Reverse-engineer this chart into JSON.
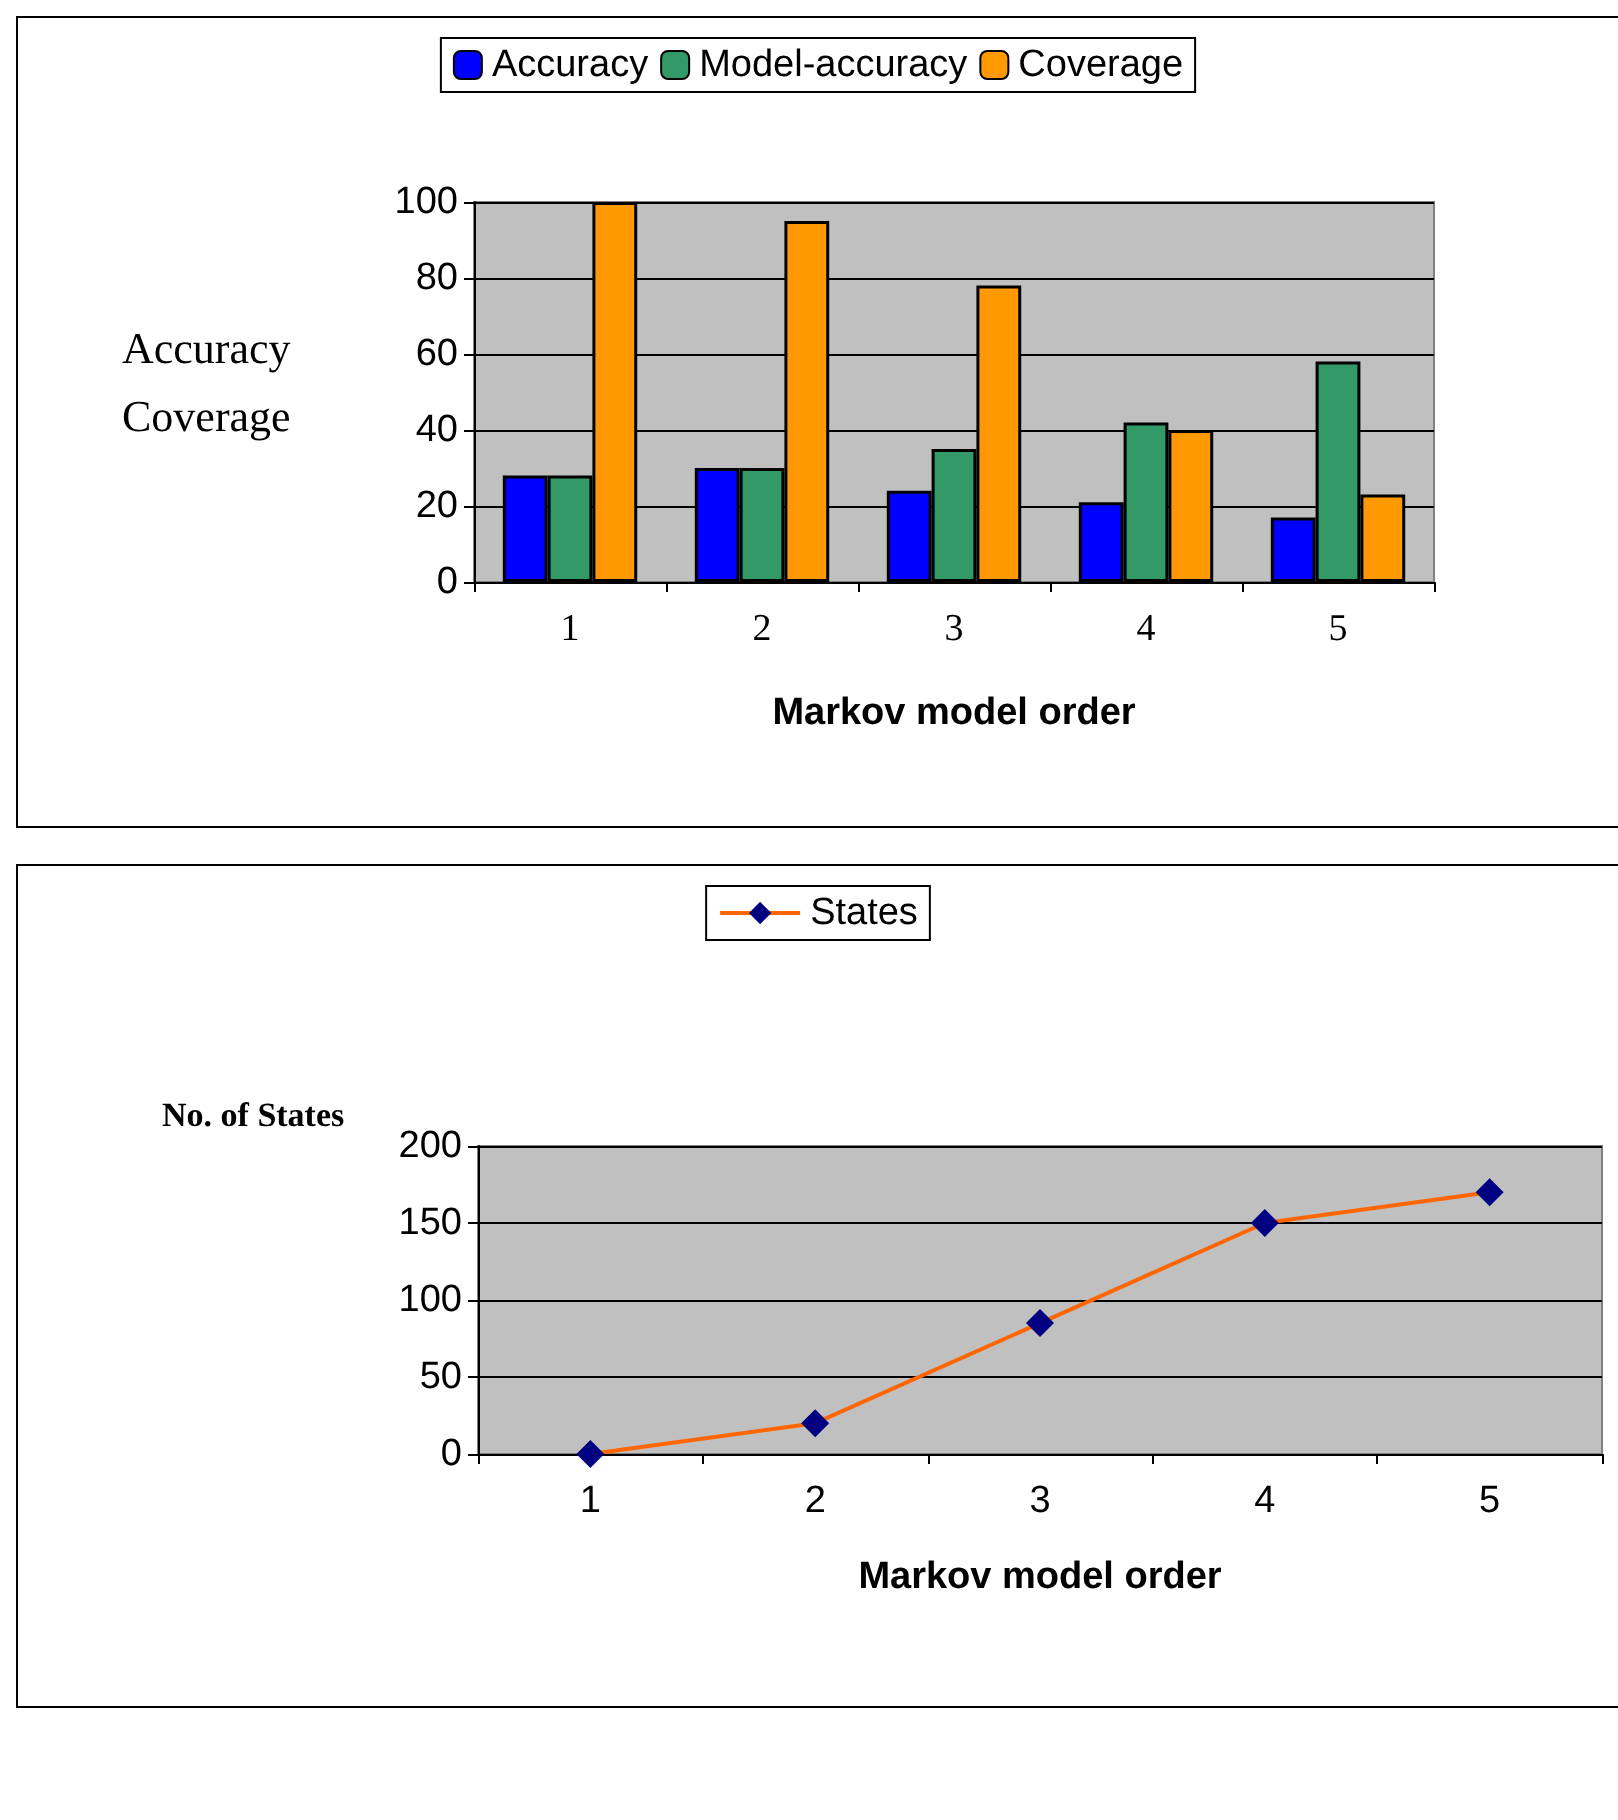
{
  "chart_data": [
    {
      "type": "bar",
      "categories": [
        "1",
        "2",
        "3",
        "4",
        "5"
      ],
      "xlabel": "Markov model order",
      "ylabel": "Accuracy\nCoverage",
      "ylim": [
        0,
        100
      ],
      "yticks": [
        0,
        20,
        40,
        60,
        80,
        100
      ],
      "grid": "y",
      "legend": "top",
      "series": [
        {
          "name": "Accuracy",
          "color": "#0000ff",
          "values": [
            28,
            30,
            24,
            21,
            17
          ]
        },
        {
          "name": "Model-accuracy",
          "color": "#339966",
          "values": [
            28,
            30,
            35,
            42,
            58
          ]
        },
        {
          "name": "Coverage",
          "color": "#ff9900",
          "values": [
            100,
            95,
            78,
            40,
            23
          ]
        }
      ]
    },
    {
      "type": "line",
      "categories": [
        "1",
        "2",
        "3",
        "4",
        "5"
      ],
      "xlabel": "Markov model order",
      "ylabel": "No. of States",
      "ylim": [
        0,
        200
      ],
      "yticks": [
        0,
        50,
        100,
        150,
        200
      ],
      "grid": "y",
      "legend": "top",
      "marker": "diamond",
      "series": [
        {
          "name": "States",
          "color": "#ff6600",
          "values": [
            0,
            20,
            85,
            150,
            170
          ]
        }
      ]
    }
  ]
}
